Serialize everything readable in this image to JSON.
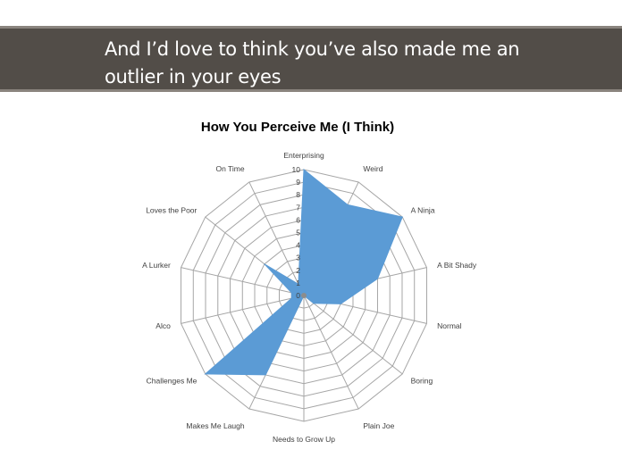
{
  "slide": {
    "title": "And I’d love to think you’ve also made me an outlier in your eyes"
  },
  "colors": {
    "title_bar": "#524d48",
    "series_fill": "#5b9bd5",
    "grid": "#a6a6a6"
  },
  "chart_data": {
    "type": "radar",
    "title": "How You Perceive Me (I Think)",
    "categories": [
      "Enterprising",
      "Weird",
      "A Ninja",
      "A Bit Shady",
      "Normal",
      "Boring",
      "Plain Joe",
      "Needs to Grow Up",
      "Makes Me Laugh",
      "Challenges Me",
      "Alco",
      "A Lurker",
      "Loves the Poor",
      "On Time"
    ],
    "values": [
      10,
      8,
      10,
      6,
      3,
      1,
      0,
      0,
      7,
      10,
      1,
      1,
      4,
      1
    ],
    "rlim": [
      0,
      10
    ],
    "ticks": [
      "0",
      "1",
      "2",
      "3",
      "4",
      "5",
      "6",
      "7",
      "8",
      "9",
      "10"
    ],
    "grid": true,
    "legend": "none"
  }
}
